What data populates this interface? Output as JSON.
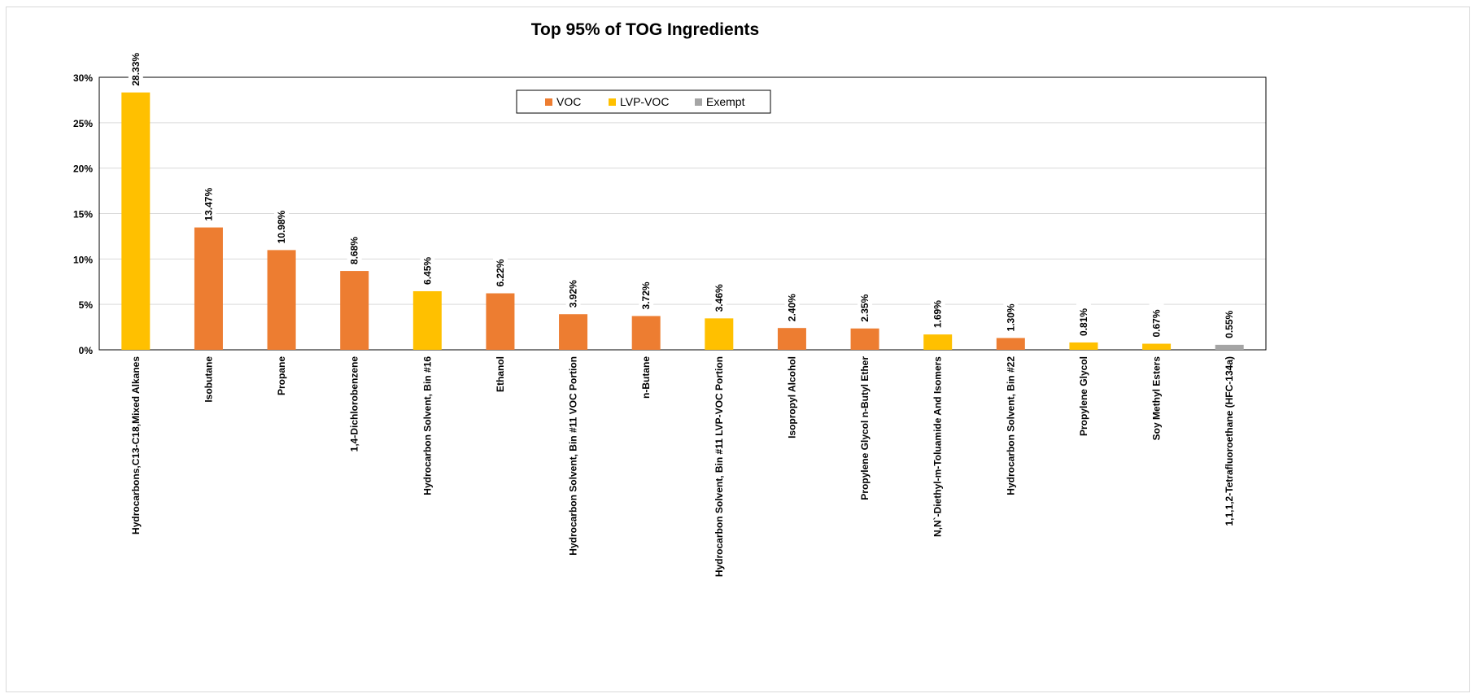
{
  "chart_data": {
    "type": "bar",
    "title": "Top 95% of TOG Ingredients",
    "xlabel": "",
    "ylabel": "",
    "ylim": [
      0,
      30
    ],
    "yticks": [
      "0%",
      "5%",
      "10%",
      "15%",
      "20%",
      "25%",
      "30%"
    ],
    "grid": true,
    "legend_position": "top-center",
    "legend": [
      {
        "name": "VOC",
        "color": "#ED7D31"
      },
      {
        "name": "LVP-VOC",
        "color": "#FFC000"
      },
      {
        "name": "Exempt",
        "color": "#A5A5A5"
      }
    ],
    "categories": [
      "Hydrocarbons,C13-C18,Mixed Alkanes",
      "Isobutane",
      "Propane",
      "1,4-Dichlorobenzene",
      "Hydrocarbon Solvent, Bin #16",
      "Ethanol",
      "Hydrocarbon Solvent, Bin #11 VOC Portion",
      "n-Butane",
      "Hydrocarbon Solvent, Bin #11 LVP-VOC Portion",
      "Isopropyl Alcohol",
      "Propylene Glycol n-Butyl Ether",
      "N,N`-Diethyl-m-Toluamide And Isomers",
      "Hydrocarbon Solvent, Bin #22",
      "Propylene Glycol",
      "Soy Methyl Esters",
      "1,1,1,2-Tetrafluoroethane (HFC-134a)"
    ],
    "values": [
      28.33,
      13.47,
      10.98,
      8.68,
      6.45,
      6.22,
      3.92,
      3.72,
      3.46,
      2.4,
      2.35,
      1.69,
      1.3,
      0.81,
      0.67,
      0.55
    ],
    "data_labels": [
      "28.33%",
      "13.47%",
      "10.98%",
      "8.68%",
      "6.45%",
      "6.22%",
      "3.92%",
      "3.72%",
      "3.46%",
      "2.40%",
      "2.35%",
      "1.69%",
      "1.30%",
      "0.81%",
      "0.67%",
      "0.55%"
    ],
    "groups": [
      "LVP-VOC",
      "VOC",
      "VOC",
      "VOC",
      "LVP-VOC",
      "VOC",
      "VOC",
      "VOC",
      "LVP-VOC",
      "VOC",
      "VOC",
      "LVP-VOC",
      "VOC",
      "LVP-VOC",
      "LVP-VOC",
      "Exempt"
    ]
  }
}
